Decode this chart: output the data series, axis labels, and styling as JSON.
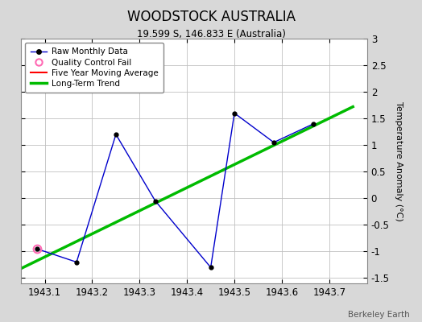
{
  "title": "WOODSTOCK AUSTRALIA",
  "subtitle": "19.599 S, 146.833 E (Australia)",
  "watermark": "Berkeley Earth",
  "raw_x": [
    1943.083,
    1943.167,
    1943.25,
    1943.333,
    1943.45,
    1943.5,
    1943.583,
    1943.667
  ],
  "raw_y": [
    -0.95,
    -1.2,
    1.2,
    -0.05,
    -1.3,
    1.6,
    1.05,
    1.4
  ],
  "qc_fail_x": [
    1943.083
  ],
  "qc_fail_y": [
    -0.95
  ],
  "trend_x": [
    1943.05,
    1943.75
  ],
  "trend_y": [
    -1.32,
    1.72
  ],
  "ylim": [
    -1.6,
    3.0
  ],
  "xlim": [
    1943.05,
    1943.78
  ],
  "yticks": [
    -1.5,
    -1.0,
    -0.5,
    0.0,
    0.5,
    1.0,
    1.5,
    2.0,
    2.5,
    3.0
  ],
  "xticks": [
    1943.1,
    1943.2,
    1943.3,
    1943.4,
    1943.5,
    1943.6,
    1943.7
  ],
  "raw_color": "#0000cc",
  "raw_marker_color": "#000000",
  "trend_color": "#00bb00",
  "five_year_color": "#ff0000",
  "qc_color": "#ff69b4",
  "background_color": "#d8d8d8",
  "plot_bg_color": "#ffffff",
  "title_fontsize": 12,
  "subtitle_fontsize": 8.5,
  "ylabel": "Temperature Anomaly (°C)",
  "legend_items": [
    "Raw Monthly Data",
    "Quality Control Fail",
    "Five Year Moving Average",
    "Long-Term Trend"
  ]
}
